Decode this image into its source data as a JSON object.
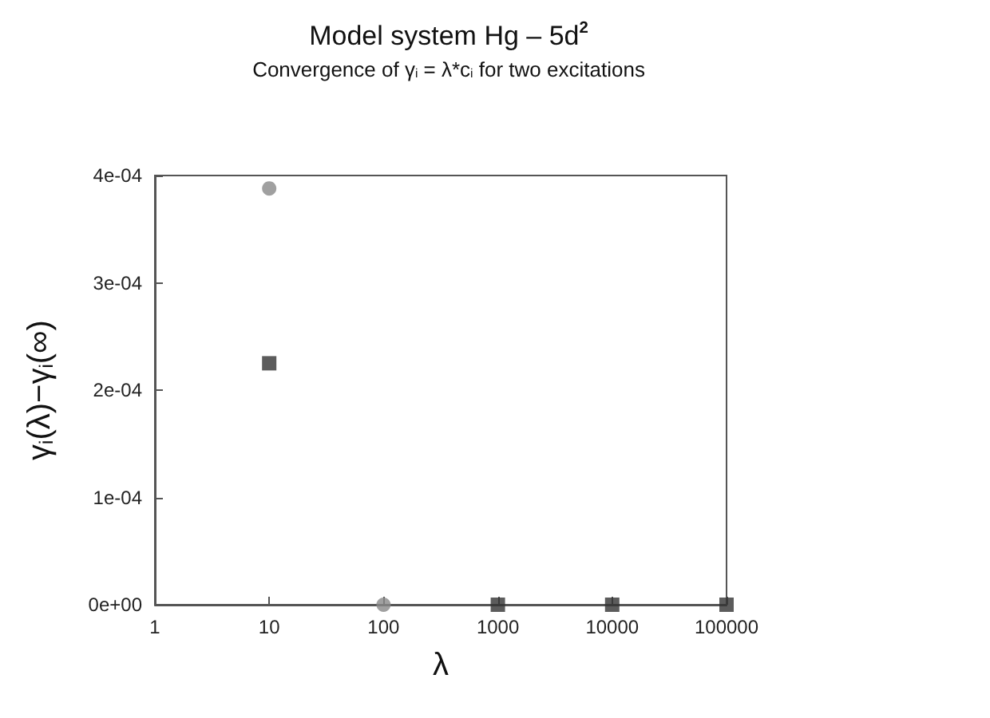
{
  "chart_data": {
    "type": "scatter",
    "title": "Model system Hg – 5d$^{2}$",
    "subtitle": "Convergence of γ$_{i}$ = λ*c$_{i}$ for two excitations",
    "xlabel": "λ",
    "ylabel": "γ$_{i}$(λ)−γ$_{i}$(∞)",
    "log": "x",
    "xlim": [
      1,
      100000
    ],
    "xticks": [
      1,
      10,
      100,
      1000,
      10000,
      100000
    ],
    "ylim": [
      0,
      0.0004
    ],
    "yticks": [
      {
        "value": 0,
        "label": "0e+00"
      },
      {
        "value": 0.0001,
        "label": "1e-04"
      },
      {
        "value": 0.0002,
        "label": "2e-04"
      },
      {
        "value": 0.0003,
        "label": "3e-04"
      },
      {
        "value": 0.0004,
        "label": "4e-04"
      }
    ],
    "grid": false,
    "series": [
      {
        "color": "#333333",
        "marker": "square",
        "x": [
          10,
          1000,
          10000,
          100000
        ],
        "values": [
          0.000225,
          0,
          0,
          0
        ]
      },
      {
        "color": "#888888",
        "marker": "circle",
        "x": [
          10,
          100
        ],
        "values": [
          0.000388,
          0
        ]
      }
    ]
  }
}
